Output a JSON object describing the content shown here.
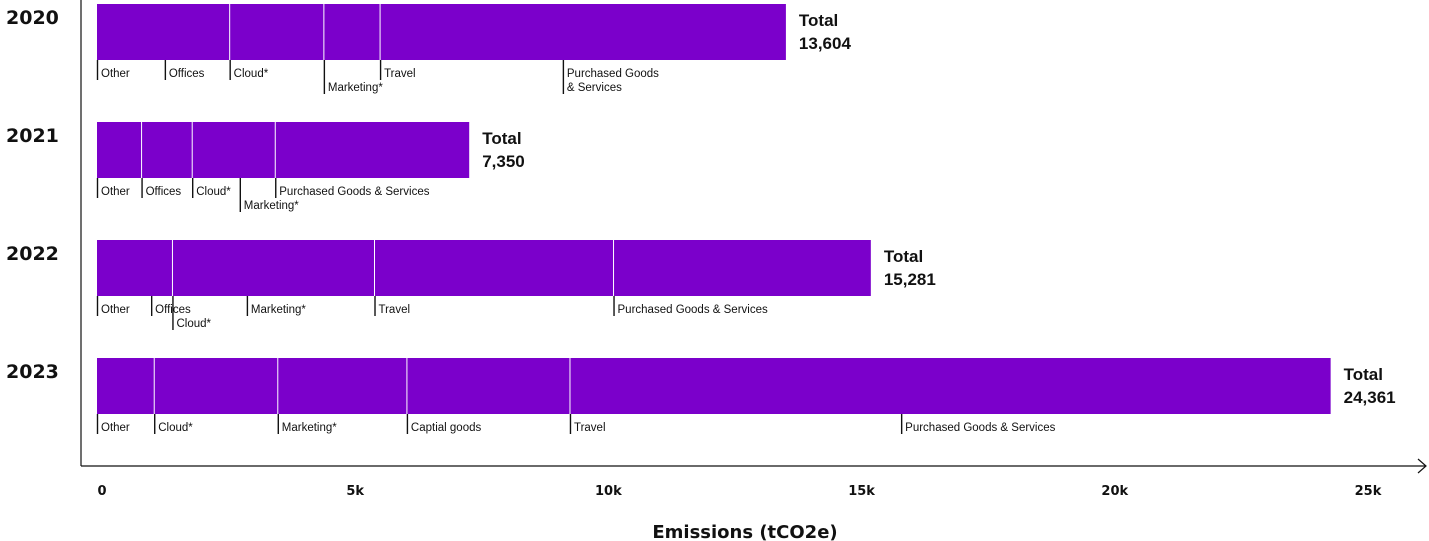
{
  "chart_data": {
    "type": "bar",
    "orientation": "horizontal",
    "stacked": true,
    "title": "",
    "xlabel": "Emissions (tCO2e)",
    "ylabel": "",
    "xlim": [
      0,
      25000
    ],
    "x_ticks": [
      "0",
      "5k",
      "10k",
      "15k",
      "20k",
      "25k"
    ],
    "x_tick_values": [
      0,
      5000,
      10000,
      15000,
      20000,
      25000
    ],
    "grid": false,
    "bar_color": "#7B00CB",
    "segment_divider_color": "#ffffff",
    "rows": [
      {
        "year": "2020",
        "total_label": "Total",
        "total_value": "13,604",
        "total": 13604,
        "segment_boundaries": [
          2620,
          4480,
          5590,
          13604
        ],
        "labels": [
          {
            "text": "Other",
            "x": 0,
            "level": 0
          },
          {
            "text": "Offices",
            "x": 1340,
            "level": 0
          },
          {
            "text": "Cloud*",
            "x": 2620,
            "level": 0
          },
          {
            "text": "Marketing*",
            "x": 4480,
            "level": 1
          },
          {
            "text": "Travel",
            "x": 5590,
            "level": 0
          },
          {
            "text": [
              "Purchased Goods",
              "& Services"
            ],
            "x": 9200,
            "level": 0
          }
        ]
      },
      {
        "year": "2021",
        "total_label": "Total",
        "total_value": "7,350",
        "total": 7350,
        "segment_boundaries": [
          880,
          1880,
          3520,
          7350
        ],
        "labels": [
          {
            "text": "Other",
            "x": 0,
            "level": 0
          },
          {
            "text": "Offices",
            "x": 880,
            "level": 0
          },
          {
            "text": "Cloud*",
            "x": 1880,
            "level": 0
          },
          {
            "text": "Marketing*",
            "x": 2820,
            "level": 1
          },
          {
            "text": "Purchased Goods & Services",
            "x": 3520,
            "level": 0
          }
        ]
      },
      {
        "year": "2022",
        "total_label": "Total",
        "total_value": "15,281",
        "total": 15281,
        "segment_boundaries": [
          1490,
          5480,
          10200,
          15281
        ],
        "labels": [
          {
            "text": "Other",
            "x": 0,
            "level": 0
          },
          {
            "text": "Offices",
            "x": 1070,
            "level": 0
          },
          {
            "text": "Cloud*",
            "x": 1490,
            "level": 1
          },
          {
            "text": "Marketing*",
            "x": 2960,
            "level": 0
          },
          {
            "text": "Travel",
            "x": 5480,
            "level": 0
          },
          {
            "text": "Purchased Goods & Services",
            "x": 10200,
            "level": 0
          }
        ]
      },
      {
        "year": "2023",
        "total_label": "Total",
        "total_value": "24,361",
        "total": 24361,
        "segment_boundaries": [
          1130,
          3570,
          6120,
          9340,
          24361
        ],
        "labels": [
          {
            "text": "Other",
            "x": 0,
            "level": 0
          },
          {
            "text": "Cloud*",
            "x": 1130,
            "level": 0
          },
          {
            "text": "Marketing*",
            "x": 3570,
            "level": 0
          },
          {
            "text": "Captial goods",
            "x": 6120,
            "level": 0
          },
          {
            "text": "Travel",
            "x": 9340,
            "level": 0
          },
          {
            "text": "Purchased Goods & Services",
            "x": 15880,
            "level": 0
          }
        ]
      }
    ]
  }
}
